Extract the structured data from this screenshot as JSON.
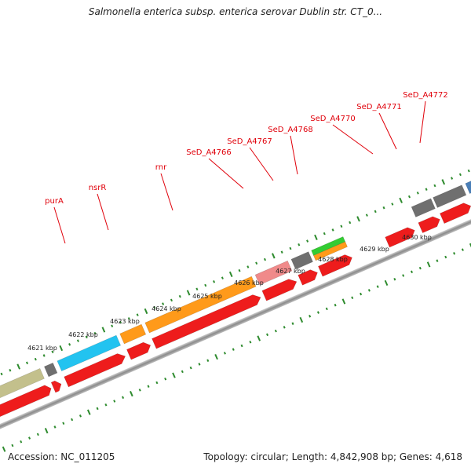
{
  "header": {
    "title": "Salmonella enterica subsp. enterica serovar Dublin str. CT_0..."
  },
  "footer": {
    "accession": "Accession: NC_011205",
    "summary": "Topology: circular; Length: 4,842,908 bp; Genes: 4,618"
  },
  "colors": {
    "cds": "#ee1c1c",
    "backbone": "#9c9c9c",
    "tick": "#2e8b2e",
    "label": "#e0000a",
    "gray_feature": "#6f6f6f",
    "orange_feature": "#ff9a1a",
    "cyan_feature": "#22c3f0",
    "olive_feature": "#c3c08c",
    "pink_feature": "#f08a8a",
    "green_feature": "#33cc33",
    "blue_feature": "#4a7fb8"
  },
  "gene_labels": [
    {
      "text": "purA"
    },
    {
      "text": "nsrR"
    },
    {
      "text": "rnr"
    },
    {
      "text": "SeD_A4766"
    },
    {
      "text": "SeD_A4767"
    },
    {
      "text": "SeD_A4768"
    },
    {
      "text": "SeD_A4770"
    },
    {
      "text": "SeD_A4771"
    },
    {
      "text": "SeD_A4772"
    }
  ],
  "kbp_labels": [
    {
      "text": "4621 kbp"
    },
    {
      "text": "4622 kbp"
    },
    {
      "text": "4623 kbp"
    },
    {
      "text": "4624 kbp"
    },
    {
      "text": "4625 kbp"
    },
    {
      "text": "4626 kbp"
    },
    {
      "text": "4627 kbp"
    },
    {
      "text": "4628 kbp"
    },
    {
      "text": "4629 kbp"
    },
    {
      "text": "4630 kbp"
    }
  ]
}
